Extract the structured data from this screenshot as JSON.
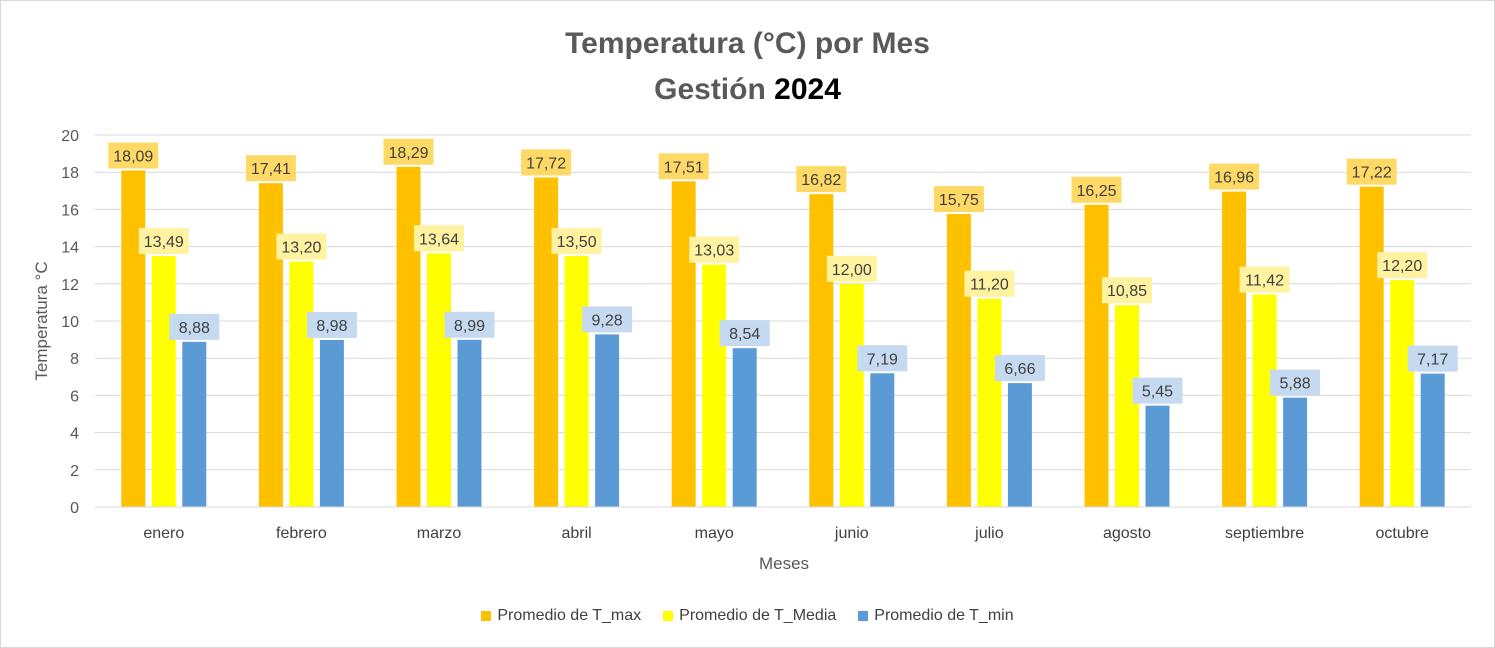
{
  "title": {
    "line1": "Temperatura (°C) por Mes",
    "line2_prefix": "Gestión",
    "line2_year": "2024"
  },
  "chart_data": {
    "type": "bar",
    "title": "Temperatura (°C) por Mes Gestión 2024",
    "xlabel": "Meses",
    "ylabel": "Temperatura °C",
    "ylim": [
      0,
      20
    ],
    "yticks": [
      0,
      2,
      4,
      6,
      8,
      10,
      12,
      14,
      16,
      18,
      20
    ],
    "grid": true,
    "legend_position": "bottom",
    "categories": [
      "enero",
      "febrero",
      "marzo",
      "abril",
      "mayo",
      "junio",
      "julio",
      "agosto",
      "septiembre",
      "octubre"
    ],
    "series": [
      {
        "name": "Promedio de T_max",
        "color": "#FFC000",
        "label_bg": "#FFD966",
        "values": [
          18.09,
          17.41,
          18.29,
          17.72,
          17.51,
          16.82,
          15.75,
          16.25,
          16.96,
          17.22
        ],
        "labels": [
          "18,09",
          "17,41",
          "18,29",
          "17,72",
          "17,51",
          "16,82",
          "15,75",
          "16,25",
          "16,96",
          "17,22"
        ]
      },
      {
        "name": "Promedio de T_Media",
        "color": "#FFFF00",
        "label_bg": "#FFF2A0",
        "values": [
          13.49,
          13.2,
          13.64,
          13.5,
          13.03,
          12.0,
          11.2,
          10.85,
          11.42,
          12.2
        ],
        "labels": [
          "13,49",
          "13,20",
          "13,64",
          "13,50",
          "13,03",
          "12,00",
          "11,20",
          "10,85",
          "11,42",
          "12,20"
        ]
      },
      {
        "name": "Promedio de T_min",
        "color": "#5B9BD5",
        "label_bg": "#C5D9F0",
        "values": [
          8.88,
          8.98,
          8.99,
          9.28,
          8.54,
          7.19,
          6.66,
          5.45,
          5.88,
          7.17
        ],
        "labels": [
          "8,88",
          "8,98",
          "8,99",
          "9,28",
          "8,54",
          "7,19",
          "6,66",
          "5,45",
          "5,88",
          "7,17"
        ]
      }
    ]
  }
}
